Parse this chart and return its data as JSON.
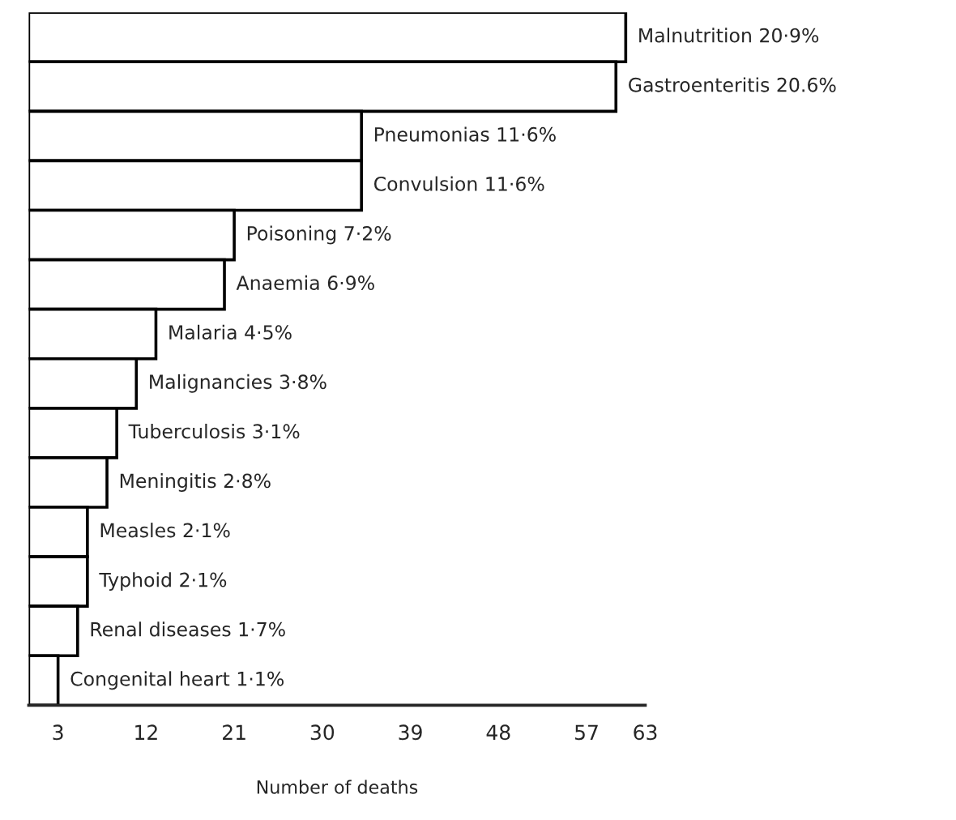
{
  "chart_data": {
    "type": "bar",
    "orientation": "horizontal",
    "xlabel": "Number of deaths",
    "categories": [
      "Malnutrition 20·9%",
      "Gastroenteritis 20.6%",
      "Pneumonias 11·6%",
      "Convulsion 11·6%",
      "Poisoning 7·2%",
      "Anaemia 6·9%",
      "Malaria 4·5%",
      "Malignancies 3·8%",
      "Tuberculosis 3·1%",
      "Meningitis 2·8%",
      "Measles 2·1%",
      "Typhoid 2·1%",
      "Renal diseases 1·7%",
      "Congenital heart 1·1%"
    ],
    "values": [
      61,
      60,
      34,
      34,
      21,
      20,
      13,
      11,
      9,
      8,
      6,
      6,
      5,
      3
    ],
    "color": "#ffffff",
    "xlim": [
      0,
      63
    ],
    "xticks": [
      3,
      12,
      21,
      30,
      39,
      48,
      57,
      63
    ],
    "tick_labels": "x",
    "grid": false,
    "legend": false
  }
}
